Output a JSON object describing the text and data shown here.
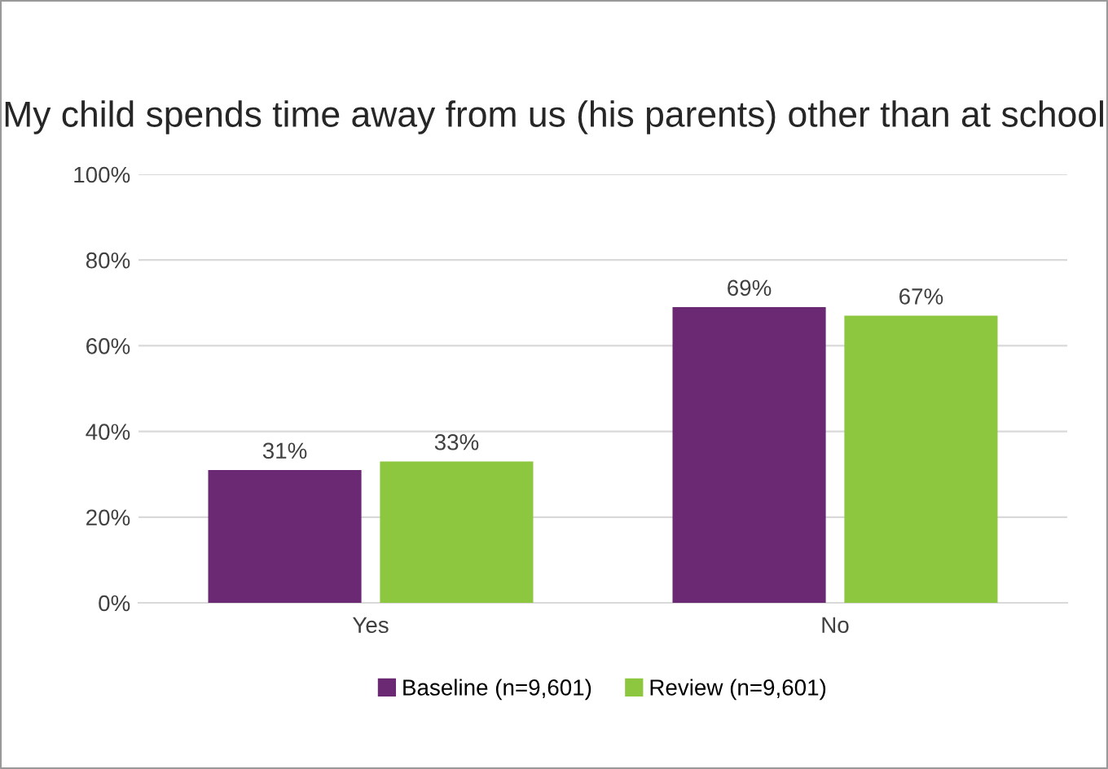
{
  "chart_data": {
    "type": "bar",
    "title": "My child spends time away from us (his parents) other than at school",
    "categories": [
      "Yes",
      "No"
    ],
    "series": [
      {
        "name": "Baseline (n=9,601)",
        "color": "#6b2873",
        "values": [
          31,
          69
        ],
        "value_labels": [
          "31%",
          "69%"
        ]
      },
      {
        "name": "Review (n=9,601)",
        "color": "#8dc63f",
        "values": [
          33,
          67
        ],
        "value_labels": [
          "33%",
          "67%"
        ]
      }
    ],
    "ylim": [
      0,
      100
    ],
    "yticks": [
      {
        "value": 0,
        "label": "0%"
      },
      {
        "value": 20,
        "label": "20%"
      },
      {
        "value": 40,
        "label": "40%"
      },
      {
        "value": 60,
        "label": "60%"
      },
      {
        "value": 80,
        "label": "80%"
      },
      {
        "value": 100,
        "label": "100%"
      }
    ],
    "grid": "y",
    "legend": "bottom"
  }
}
